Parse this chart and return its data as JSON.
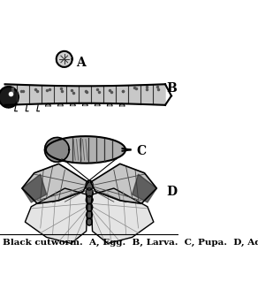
{
  "title": "",
  "caption": "Black cutworm.  A, Egg.  B, Larva.  C, Pupa.  D, Adult.",
  "background_color": "#ffffff",
  "label_A": "A",
  "label_B": "B",
  "label_C": "C",
  "label_D": "D",
  "caption_fontsize": 7.5,
  "label_fontsize": 10,
  "figsize": [
    2.92,
    3.36
  ],
  "dpi": 100
}
